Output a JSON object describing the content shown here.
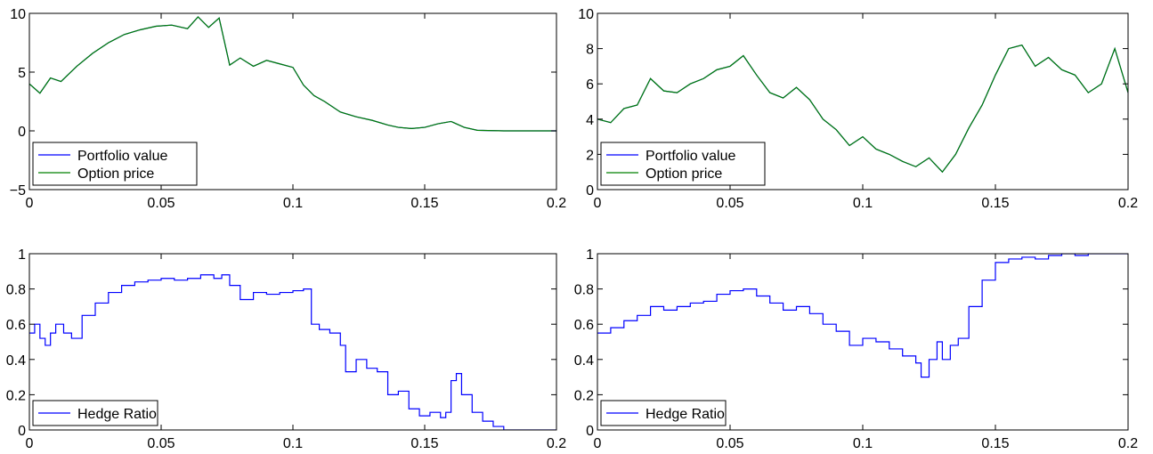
{
  "chart_data": [
    {
      "type": "line",
      "xlim": [
        0,
        0.2
      ],
      "ylim": [
        -5,
        10
      ],
      "xticks": [
        0,
        0.05,
        0.1,
        0.15,
        0.2
      ],
      "xtick_labels": [
        "0",
        "0.05",
        "0.1",
        "0.15",
        "0.2"
      ],
      "yticks": [
        -5,
        0,
        5,
        10
      ],
      "ytick_labels": [
        "−5",
        "0",
        "5",
        "10"
      ],
      "grid": false,
      "legend_position": "bottom-left",
      "series": [
        {
          "name": "Portfolio value",
          "color": "#0000ff",
          "x": [
            0,
            0.004,
            0.008,
            0.012,
            0.018,
            0.024,
            0.03,
            0.036,
            0.042,
            0.048,
            0.054,
            0.06,
            0.064,
            0.068,
            0.072,
            0.076,
            0.08,
            0.085,
            0.09,
            0.095,
            0.1,
            0.104,
            0.108,
            0.112,
            0.118,
            0.124,
            0.13,
            0.136,
            0.14,
            0.145,
            0.15,
            0.155,
            0.16,
            0.165,
            0.17,
            0.18,
            0.2
          ],
          "values": [
            4.0,
            3.2,
            4.5,
            4.2,
            5.5,
            6.6,
            7.5,
            8.2,
            8.6,
            8.9,
            9.0,
            8.7,
            9.7,
            8.8,
            9.6,
            5.6,
            6.2,
            5.5,
            6.0,
            5.7,
            5.4,
            3.9,
            3.0,
            2.5,
            1.6,
            1.2,
            0.9,
            0.5,
            0.3,
            0.2,
            0.3,
            0.6,
            0.8,
            0.3,
            0.05,
            0.0,
            0.0
          ]
        },
        {
          "name": "Option price",
          "color": "#008000",
          "x": [
            0,
            0.004,
            0.008,
            0.012,
            0.018,
            0.024,
            0.03,
            0.036,
            0.042,
            0.048,
            0.054,
            0.06,
            0.064,
            0.068,
            0.072,
            0.076,
            0.08,
            0.085,
            0.09,
            0.095,
            0.1,
            0.104,
            0.108,
            0.112,
            0.118,
            0.124,
            0.13,
            0.136,
            0.14,
            0.145,
            0.15,
            0.155,
            0.16,
            0.165,
            0.17,
            0.18,
            0.2
          ],
          "values": [
            4.0,
            3.2,
            4.5,
            4.2,
            5.5,
            6.6,
            7.5,
            8.2,
            8.6,
            8.9,
            9.0,
            8.7,
            9.7,
            8.8,
            9.6,
            5.6,
            6.2,
            5.5,
            6.0,
            5.7,
            5.4,
            3.9,
            3.0,
            2.5,
            1.6,
            1.2,
            0.9,
            0.5,
            0.3,
            0.2,
            0.3,
            0.6,
            0.8,
            0.3,
            0.05,
            0.0,
            0.0
          ]
        }
      ]
    },
    {
      "type": "line",
      "xlim": [
        0,
        0.2
      ],
      "ylim": [
        0,
        10
      ],
      "xticks": [
        0,
        0.05,
        0.1,
        0.15,
        0.2
      ],
      "xtick_labels": [
        "0",
        "0.05",
        "0.1",
        "0.15",
        "0.2"
      ],
      "yticks": [
        0,
        2,
        4,
        6,
        8,
        10
      ],
      "ytick_labels": [
        "0",
        "2",
        "4",
        "6",
        "8",
        "10"
      ],
      "grid": false,
      "legend_position": "bottom-left",
      "series": [
        {
          "name": "Portfolio value",
          "color": "#0000ff",
          "x": [
            0,
            0.005,
            0.01,
            0.015,
            0.02,
            0.025,
            0.03,
            0.035,
            0.04,
            0.045,
            0.05,
            0.055,
            0.06,
            0.065,
            0.07,
            0.075,
            0.08,
            0.085,
            0.09,
            0.095,
            0.1,
            0.105,
            0.11,
            0.115,
            0.12,
            0.125,
            0.13,
            0.135,
            0.14,
            0.145,
            0.15,
            0.155,
            0.16,
            0.165,
            0.17,
            0.175,
            0.18,
            0.185,
            0.19,
            0.195,
            0.2
          ],
          "values": [
            4.0,
            3.8,
            4.6,
            4.8,
            6.3,
            5.6,
            5.5,
            6.0,
            6.3,
            6.8,
            7.0,
            7.6,
            6.5,
            5.5,
            5.2,
            5.8,
            5.1,
            4.0,
            3.4,
            2.5,
            3.0,
            2.3,
            2.0,
            1.6,
            1.3,
            1.8,
            1.0,
            2.0,
            3.5,
            4.8,
            6.5,
            8.0,
            8.2,
            7.0,
            7.5,
            6.8,
            6.5,
            5.5,
            6.0,
            8.0,
            5.5
          ]
        },
        {
          "name": "Option price",
          "color": "#008000",
          "x": [
            0,
            0.005,
            0.01,
            0.015,
            0.02,
            0.025,
            0.03,
            0.035,
            0.04,
            0.045,
            0.05,
            0.055,
            0.06,
            0.065,
            0.07,
            0.075,
            0.08,
            0.085,
            0.09,
            0.095,
            0.1,
            0.105,
            0.11,
            0.115,
            0.12,
            0.125,
            0.13,
            0.135,
            0.14,
            0.145,
            0.15,
            0.155,
            0.16,
            0.165,
            0.17,
            0.175,
            0.18,
            0.185,
            0.19,
            0.195,
            0.2
          ],
          "values": [
            4.0,
            3.8,
            4.6,
            4.8,
            6.3,
            5.6,
            5.5,
            6.0,
            6.3,
            6.8,
            7.0,
            7.6,
            6.5,
            5.5,
            5.2,
            5.8,
            5.1,
            4.0,
            3.4,
            2.5,
            3.0,
            2.3,
            2.0,
            1.6,
            1.3,
            1.8,
            1.0,
            2.0,
            3.5,
            4.8,
            6.5,
            8.0,
            8.2,
            7.0,
            7.5,
            6.8,
            6.5,
            5.5,
            6.0,
            8.0,
            5.5
          ]
        }
      ]
    },
    {
      "type": "line",
      "step": true,
      "xlim": [
        0,
        0.2
      ],
      "ylim": [
        0,
        1
      ],
      "xticks": [
        0,
        0.05,
        0.1,
        0.15,
        0.2
      ],
      "xtick_labels": [
        "0",
        "0.05",
        "0.1",
        "0.15",
        "0.2"
      ],
      "yticks": [
        0,
        0.2,
        0.4,
        0.6,
        0.8,
        1
      ],
      "ytick_labels": [
        "0",
        "0.2",
        "0.4",
        "0.6",
        "0.8",
        "1"
      ],
      "grid": false,
      "legend_position": "bottom-left",
      "series": [
        {
          "name": "Hedge Ratio",
          "color": "#0000ff",
          "x": [
            0,
            0.002,
            0.004,
            0.006,
            0.008,
            0.01,
            0.013,
            0.016,
            0.02,
            0.025,
            0.03,
            0.035,
            0.04,
            0.045,
            0.05,
            0.055,
            0.06,
            0.065,
            0.07,
            0.073,
            0.076,
            0.08,
            0.085,
            0.09,
            0.095,
            0.1,
            0.104,
            0.107,
            0.11,
            0.114,
            0.118,
            0.12,
            0.124,
            0.128,
            0.132,
            0.136,
            0.14,
            0.144,
            0.148,
            0.152,
            0.156,
            0.158,
            0.16,
            0.162,
            0.164,
            0.168,
            0.172,
            0.176,
            0.18,
            0.2
          ],
          "values": [
            0.55,
            0.6,
            0.52,
            0.48,
            0.55,
            0.6,
            0.55,
            0.52,
            0.65,
            0.72,
            0.78,
            0.82,
            0.84,
            0.85,
            0.86,
            0.85,
            0.86,
            0.88,
            0.86,
            0.88,
            0.82,
            0.74,
            0.78,
            0.77,
            0.78,
            0.79,
            0.8,
            0.6,
            0.57,
            0.55,
            0.48,
            0.33,
            0.4,
            0.35,
            0.33,
            0.2,
            0.22,
            0.12,
            0.08,
            0.1,
            0.07,
            0.1,
            0.28,
            0.32,
            0.2,
            0.1,
            0.05,
            0.02,
            0.0,
            0.0
          ]
        }
      ]
    },
    {
      "type": "line",
      "step": true,
      "xlim": [
        0,
        0.2
      ],
      "ylim": [
        0,
        1
      ],
      "xticks": [
        0,
        0.05,
        0.1,
        0.15,
        0.2
      ],
      "xtick_labels": [
        "0",
        "0.05",
        "0.1",
        "0.15",
        "0.2"
      ],
      "yticks": [
        0,
        0.2,
        0.4,
        0.6,
        0.8,
        1
      ],
      "ytick_labels": [
        "0",
        "0.2",
        "0.4",
        "0.6",
        "0.8",
        "1"
      ],
      "grid": false,
      "legend_position": "bottom-left",
      "series": [
        {
          "name": "Hedge Ratio",
          "color": "#0000ff",
          "x": [
            0,
            0.005,
            0.01,
            0.015,
            0.02,
            0.025,
            0.03,
            0.035,
            0.04,
            0.045,
            0.05,
            0.055,
            0.06,
            0.065,
            0.07,
            0.075,
            0.08,
            0.085,
            0.09,
            0.095,
            0.1,
            0.105,
            0.11,
            0.115,
            0.12,
            0.122,
            0.125,
            0.128,
            0.13,
            0.133,
            0.136,
            0.14,
            0.145,
            0.15,
            0.155,
            0.16,
            0.165,
            0.17,
            0.175,
            0.18,
            0.185,
            0.19,
            0.2
          ],
          "values": [
            0.55,
            0.58,
            0.62,
            0.65,
            0.7,
            0.68,
            0.7,
            0.72,
            0.73,
            0.77,
            0.79,
            0.8,
            0.76,
            0.72,
            0.68,
            0.7,
            0.66,
            0.6,
            0.56,
            0.48,
            0.52,
            0.5,
            0.46,
            0.42,
            0.38,
            0.3,
            0.4,
            0.5,
            0.4,
            0.48,
            0.52,
            0.7,
            0.85,
            0.95,
            0.97,
            0.98,
            0.97,
            0.99,
            1.0,
            0.99,
            1.0,
            1.0,
            1.0
          ]
        }
      ]
    }
  ]
}
